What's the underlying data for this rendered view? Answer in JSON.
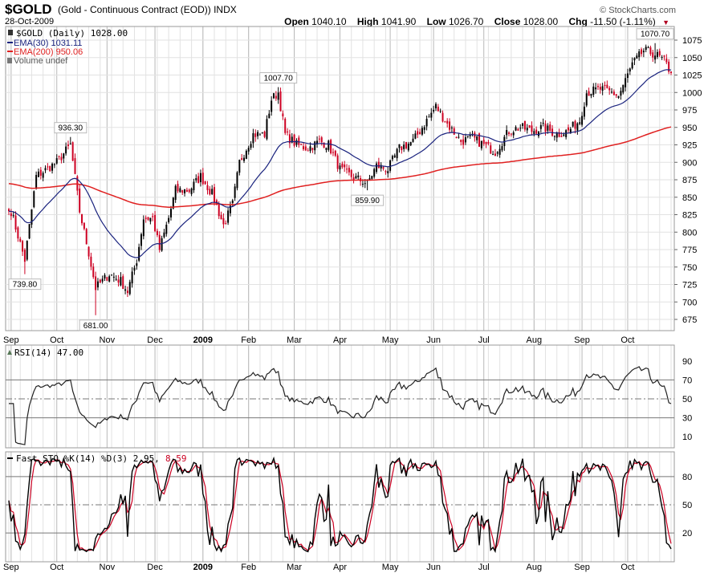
{
  "header": {
    "symbol": "$GOLD",
    "description": "(Gold - Continuous Contract (EOD)) INDX",
    "date": "28-Oct-2009",
    "copyright": "© StockCharts.com",
    "open_label": "Open",
    "open": "1040.10",
    "high_label": "High",
    "high": "1041.90",
    "low_label": "Low",
    "low": "1026.70",
    "close_label": "Close",
    "close": "1028.00",
    "chg_label": "Chg",
    "chg": "-11.50 (-1.11%)",
    "chg_arrow": "▼"
  },
  "legend": {
    "price": "$GOLD (Daily) 1028.00",
    "ema30": "EMA(30) 1031.11",
    "ema200": "EMA(200) 950.06",
    "volume": "Volume undef",
    "rsi": "RSI(14) 47.00",
    "sto_prefix": "Fast STO %K(14) %D(3) 2.95,",
    "sto_d": "8.59"
  },
  "colors": {
    "up": "#000000",
    "down": "#cc0022",
    "ema30": "#1a237e",
    "ema200": "#e02020",
    "grid": "#cccccc"
  },
  "chart_data": {
    "type": "candlestick",
    "title": "$GOLD (Daily)",
    "x_unit": "trading_day",
    "anchors": [
      [
        0,
        830
      ],
      [
        1,
        830
      ],
      [
        7,
        760
      ],
      [
        12,
        880
      ],
      [
        21,
        900
      ],
      [
        27,
        925
      ],
      [
        31,
        830
      ],
      [
        35,
        770
      ],
      [
        38,
        720
      ],
      [
        44,
        740
      ],
      [
        49,
        730
      ],
      [
        52,
        715
      ],
      [
        56,
        760
      ],
      [
        59,
        820
      ],
      [
        63,
        820
      ],
      [
        66,
        775
      ],
      [
        70,
        820
      ],
      [
        73,
        860
      ],
      [
        79,
        860
      ],
      [
        84,
        880
      ],
      [
        89,
        855
      ],
      [
        94,
        810
      ],
      [
        98,
        840
      ],
      [
        101,
        900
      ],
      [
        107,
        940
      ],
      [
        112,
        940
      ],
      [
        115,
        990
      ],
      [
        118,
        1000
      ],
      [
        121,
        940
      ],
      [
        126,
        925
      ],
      [
        131,
        920
      ],
      [
        136,
        930
      ],
      [
        140,
        925
      ],
      [
        145,
        890
      ],
      [
        150,
        880
      ],
      [
        157,
        870
      ],
      [
        161,
        895
      ],
      [
        166,
        890
      ],
      [
        171,
        920
      ],
      [
        177,
        930
      ],
      [
        182,
        955
      ],
      [
        187,
        980
      ],
      [
        192,
        955
      ],
      [
        198,
        930
      ],
      [
        203,
        935
      ],
      [
        208,
        925
      ],
      [
        213,
        915
      ],
      [
        219,
        945
      ],
      [
        224,
        950
      ],
      [
        229,
        945
      ],
      [
        234,
        950
      ],
      [
        240,
        940
      ],
      [
        245,
        945
      ],
      [
        250,
        960
      ],
      [
        253,
        1000
      ],
      [
        259,
        1005
      ],
      [
        264,
        1000
      ],
      [
        267,
        995
      ],
      [
        273,
        1040
      ],
      [
        278,
        1060
      ],
      [
        283,
        1055
      ],
      [
        287,
        1045
      ],
      [
        290,
        1028
      ]
    ],
    "total_days": 291,
    "ema_periods": [
      30,
      200
    ],
    "ema200_seed": 870,
    "price_axis": {
      "min": 675,
      "max": 1075,
      "step": 25,
      "ticks": [
        675,
        700,
        725,
        750,
        775,
        800,
        825,
        850,
        875,
        900,
        925,
        950,
        975,
        1000,
        1025,
        1050,
        1075
      ]
    },
    "annotations": [
      {
        "day": 7,
        "value": 739.8,
        "text": "739.80",
        "pos": "below"
      },
      {
        "day": 27,
        "value": 936.3,
        "text": "936.30",
        "pos": "above"
      },
      {
        "day": 38,
        "value": 681.0,
        "text": "681.00",
        "pos": "below"
      },
      {
        "day": 118,
        "value": 1007.7,
        "text": "1007.70",
        "pos": "above"
      },
      {
        "day": 157,
        "value": 859.9,
        "text": "859.90",
        "pos": "below"
      },
      {
        "day": 283,
        "value": 1070.7,
        "text": "1070.70",
        "pos": "above"
      }
    ],
    "x_labels": [
      {
        "day": 1,
        "text": "Sep"
      },
      {
        "day": 21,
        "text": "Oct"
      },
      {
        "day": 43,
        "text": "Nov"
      },
      {
        "day": 64,
        "text": "Dec"
      },
      {
        "day": 85,
        "text": "2009",
        "bold": true
      },
      {
        "day": 105,
        "text": "Feb"
      },
      {
        "day": 125,
        "text": "Mar"
      },
      {
        "day": 145,
        "text": "Apr"
      },
      {
        "day": 167,
        "text": "May"
      },
      {
        "day": 186,
        "text": "Jun"
      },
      {
        "day": 208,
        "text": "Jul"
      },
      {
        "day": 230,
        "text": "Aug"
      },
      {
        "day": 251,
        "text": "Sep"
      },
      {
        "day": 271,
        "text": "Oct"
      }
    ],
    "rsi": {
      "period": 14,
      "ticks": [
        10,
        30,
        50,
        70,
        90
      ],
      "levels": [
        30,
        50,
        70
      ]
    },
    "sto": {
      "k": 14,
      "d": 3,
      "ticks": [
        20,
        50,
        80
      ],
      "levels": [
        20,
        50,
        80
      ]
    }
  }
}
